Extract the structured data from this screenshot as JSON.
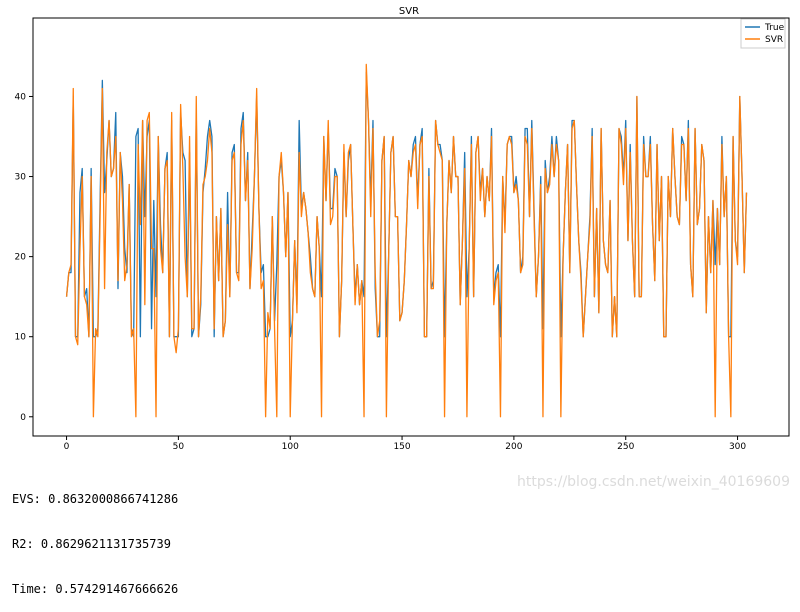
{
  "chart_data": {
    "type": "line",
    "title": "SVR",
    "xlabel": "",
    "ylabel": "",
    "xlim": [
      -15,
      323
    ],
    "ylim": [
      -2.4,
      49.8
    ],
    "xticks": [
      0,
      50,
      100,
      150,
      200,
      250,
      300
    ],
    "yticks": [
      0,
      10,
      20,
      30,
      40
    ],
    "grid": false,
    "legend_position": "top-right",
    "series": [
      {
        "name": "True",
        "color": "#1f77b4",
        "values": [
          15,
          18,
          18,
          40,
          10,
          10,
          28,
          31,
          15,
          16,
          10,
          31,
          10,
          10,
          11,
          27,
          42,
          28,
          32,
          37,
          30,
          31,
          38,
          16,
          33,
          30,
          21,
          18,
          29,
          11,
          10,
          35,
          36,
          10,
          37,
          25,
          35,
          37,
          11,
          27,
          15,
          35,
          24,
          18,
          31,
          33,
          10,
          37,
          10,
          10,
          10,
          38,
          33,
          32,
          15,
          33,
          10,
          11,
          38,
          10,
          14,
          28,
          31,
          35,
          37,
          35,
          10,
          25,
          17,
          26,
          10,
          12,
          28,
          15,
          33,
          34,
          18,
          18,
          36,
          38,
          27,
          33,
          16,
          23,
          30,
          40,
          26,
          18,
          19,
          10,
          10,
          11,
          25,
          12,
          19,
          30,
          32,
          28,
          20,
          28,
          10,
          12,
          22,
          14,
          37,
          26,
          28,
          26,
          23,
          20,
          16,
          15,
          25,
          21,
          15,
          35,
          27,
          36,
          26,
          26,
          31,
          30,
          10,
          17,
          33,
          25,
          32,
          34,
          24,
          15,
          19,
          14,
          17,
          15,
          43,
          37,
          27,
          37,
          16,
          10,
          10,
          32,
          35,
          10,
          20,
          33,
          35,
          25,
          25,
          12,
          13,
          17,
          24,
          32,
          30,
          34,
          35,
          27,
          34,
          36,
          10,
          10,
          31,
          16,
          17,
          37,
          34,
          34,
          32,
          10,
          24,
          32,
          28,
          35,
          30,
          30,
          14,
          22,
          33,
          15,
          21,
          35,
          15,
          33,
          35,
          28,
          31,
          25,
          30,
          27,
          36,
          15,
          18,
          19,
          10,
          30,
          24,
          34,
          35,
          35,
          28,
          30,
          27,
          18,
          20,
          36,
          36,
          25,
          37,
          26,
          15,
          20,
          30,
          11,
          32,
          28,
          30,
          35,
          30,
          35,
          32,
          10,
          20,
          28,
          34,
          18,
          37,
          37,
          29,
          22,
          18,
          10,
          15,
          20,
          25,
          36,
          15,
          26,
          13,
          36,
          22,
          19,
          18,
          27,
          10,
          15,
          10,
          36,
          35,
          30,
          37,
          22,
          34,
          22,
          15,
          40,
          15,
          15,
          35,
          30,
          30,
          35,
          24,
          17,
          34,
          22,
          30,
          10,
          10,
          30,
          25,
          36,
          30,
          25,
          24,
          35,
          34,
          27,
          37,
          19,
          15,
          36,
          24,
          26,
          34,
          32,
          13,
          25,
          18,
          27,
          19,
          26,
          19,
          35,
          25,
          30,
          10,
          10,
          35,
          22,
          20,
          40,
          30,
          18,
          28
        ]
      },
      {
        "name": "SVR",
        "color": "#ff7f0e",
        "values": [
          15,
          18,
          19,
          41,
          10,
          9,
          21,
          30,
          15,
          14,
          10,
          30,
          0,
          11,
          10,
          25,
          41,
          16,
          33,
          37,
          30,
          31,
          35,
          17,
          33,
          27,
          17,
          19,
          29,
          10,
          11,
          0,
          34,
          24,
          37,
          14,
          37,
          38,
          21,
          21,
          0,
          35,
          21,
          18,
          31,
          32,
          10,
          38,
          10,
          8,
          11,
          39,
          31,
          20,
          15,
          35,
          11,
          11,
          40,
          10,
          15,
          29,
          30,
          32,
          36,
          33,
          11,
          25,
          17,
          26,
          10,
          12,
          24,
          15,
          32,
          33,
          18,
          17,
          34,
          37,
          27,
          32,
          16,
          21,
          30,
          41,
          26,
          16,
          17,
          0,
          13,
          11,
          25,
          11,
          0,
          30,
          33,
          28,
          20,
          28,
          0,
          12,
          22,
          13,
          33,
          25,
          28,
          26,
          23,
          18,
          16,
          15,
          25,
          21,
          0,
          35,
          27,
          37,
          24,
          25,
          30,
          30,
          10,
          17,
          34,
          25,
          33,
          34,
          24,
          14,
          19,
          14,
          17,
          0,
          44,
          37,
          25,
          36,
          18,
          10,
          12,
          32,
          35,
          0,
          20,
          33,
          35,
          25,
          25,
          12,
          13,
          17,
          24,
          32,
          30,
          33,
          34,
          26,
          34,
          35,
          10,
          10,
          30,
          16,
          16,
          37,
          34,
          33,
          32,
          0,
          24,
          32,
          28,
          35,
          30,
          30,
          14,
          22,
          31,
          0,
          21,
          34,
          15,
          33,
          35,
          27,
          31,
          25,
          30,
          27,
          35,
          14,
          17,
          18,
          0,
          30,
          23,
          34,
          35,
          34,
          28,
          29,
          27,
          18,
          19,
          35,
          34,
          25,
          36,
          25,
          15,
          20,
          29,
          0,
          31,
          28,
          29,
          34,
          30,
          34,
          32,
          0,
          20,
          28,
          34,
          18,
          36,
          37,
          29,
          22,
          17,
          10,
          15,
          20,
          24,
          35,
          15,
          26,
          13,
          36,
          22,
          19,
          18,
          27,
          10,
          15,
          10,
          36,
          34,
          29,
          36,
          22,
          33,
          22,
          15,
          40,
          15,
          15,
          34,
          30,
          30,
          34,
          24,
          17,
          34,
          22,
          30,
          10,
          10,
          30,
          25,
          36,
          30,
          25,
          24,
          34,
          34,
          27,
          36,
          19,
          15,
          36,
          24,
          26,
          34,
          32,
          13,
          25,
          18,
          27,
          0,
          26,
          19,
          34,
          25,
          30,
          10,
          0,
          35,
          22,
          19,
          40,
          30,
          18,
          28
        ]
      }
    ]
  },
  "metrics": {
    "evs": "EVS: 0.8632000866741286",
    "r2": "R2: 0.8629621131735739",
    "time": "Time: 0.574291467666626"
  },
  "watermark": "https://blog.csdn.net/weixin_40169609"
}
